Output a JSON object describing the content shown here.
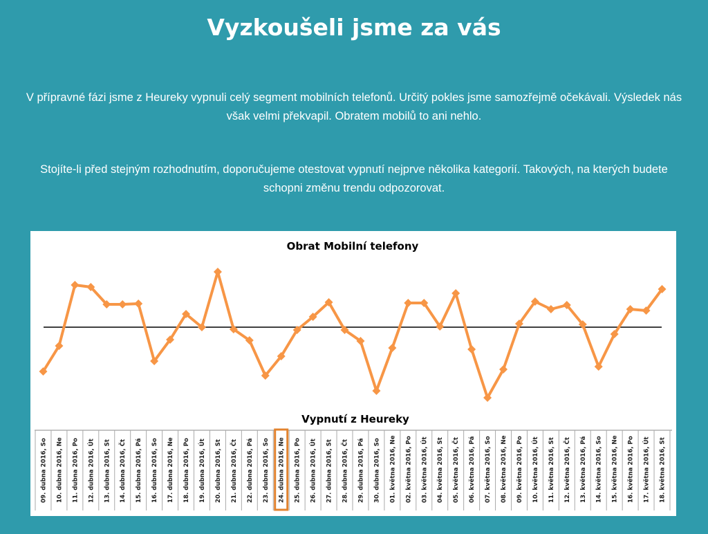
{
  "header": {
    "title": "Vyzkoušeli jsme za vás"
  },
  "paragraphs": [
    "V přípravné fázi jsme z Heureky vypnuli celý segment mobilních telefonů. Určitý pokles jsme samozřejmě očekávali. Výsledek nás však velmi překvapil. Obratem mobilů to ani nehlo.",
    "Stojíte-li před stejným rozhodnutím, doporučujeme otestovat vypnutí nejprve několika kategorií. Takových, na kterých budete schopni změnu trendu odpozorovat."
  ],
  "chart_data": {
    "type": "line",
    "title": "Obrat Mobilní telefony",
    "annotation": "Vypnutí z Heureky",
    "categories": [
      "09. dubna 2016, So",
      "10. dubna 2016, Ne",
      "11. dubna 2016, Po",
      "12. dubna 2016, Út",
      "13. dubna 2016, St",
      "14. dubna 2016, Čt",
      "15. dubna 2016, Pá",
      "16. dubna 2016, So",
      "17. dubna 2016, Ne",
      "18. dubna 2016, Po",
      "19. dubna 2016, Út",
      "20. dubna 2016, St",
      "21. dubna 2016, Čt",
      "22. dubna 2016, Pá",
      "23. dubna 2016, So",
      "24. dubna 2016, Ne",
      "25. dubna 2016, Po",
      "26. dubna 2016, Út",
      "27. dubna 2016, St",
      "28. dubna 2016, Čt",
      "29. dubna 2016, Pá",
      "30. dubna 2016, So",
      "01. května 2016, Ne",
      "02. května 2016, Po",
      "03. května 2016, Út",
      "04. května 2016, St",
      "05. května 2016, Čt",
      "06. května 2016, Pá",
      "07. května 2016, So",
      "08. května 2016, Ne",
      "09. května 2016, Po",
      "10. května 2016, Út",
      "11. května 2016, St",
      "12. května 2016, Čt",
      "13. května 2016, Pá",
      "14. května 2016, So",
      "15. května 2016, Ne",
      "16. května 2016, Po",
      "17. května 2016, Út",
      "18. května 2016, St"
    ],
    "values": [
      63,
      100,
      188,
      185,
      160,
      160,
      161,
      78,
      109,
      146,
      127,
      207,
      124,
      108,
      57,
      85,
      123,
      142,
      163,
      123,
      107,
      35,
      97,
      162,
      162,
      128,
      176,
      95,
      25,
      66,
      132,
      164,
      153,
      159,
      131,
      70,
      117,
      153,
      151,
      182
    ],
    "color": "#f79646",
    "average": 127,
    "average_color": "#000000",
    "highlighted_category": 15,
    "highlight_color": "#e2832f"
  }
}
